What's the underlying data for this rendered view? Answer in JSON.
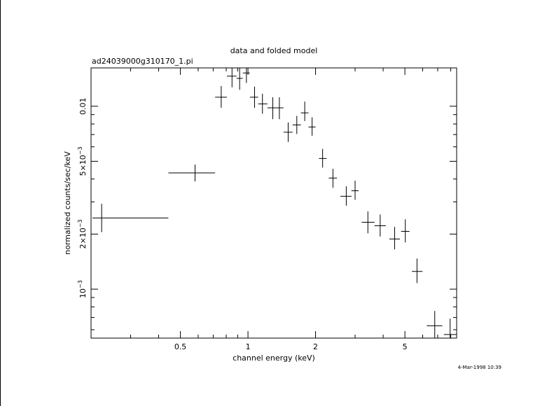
{
  "chart_data": {
    "type": "scatter",
    "title": "data and folded model",
    "subtitle": "ad24039000g310170_1.pi",
    "xlabel": "channel energy (keV)",
    "ylabel": "normalized counts/sec/keV",
    "timestamp": "4-Mar-1998 10:39",
    "xscale": "log",
    "yscale": "log",
    "xlim": [
      0.2,
      8.5
    ],
    "ylim": [
      0.00054,
      0.0162
    ],
    "x_tick_labels": [
      {
        "value": 0.5,
        "label": "0.5"
      },
      {
        "value": 1,
        "label": "1"
      },
      {
        "value": 2,
        "label": "2"
      },
      {
        "value": 5,
        "label": "5"
      }
    ],
    "y_tick_labels": [
      {
        "value": 0.001,
        "label": "10",
        "exp": "−3"
      },
      {
        "value": 0.002,
        "label": "2×10",
        "exp": "−3"
      },
      {
        "value": 0.005,
        "label": "5×10",
        "exp": "−3"
      },
      {
        "value": 0.01,
        "label": "0.01",
        "exp": ""
      }
    ],
    "series": [
      {
        "points": [
          {
            "x": 0.223,
            "xlo": 0.203,
            "xhi": 0.442,
            "y": 0.00245,
            "ylo": 0.00205,
            "yhi": 0.00293
          },
          {
            "x": 0.581,
            "xlo": 0.442,
            "xhi": 0.714,
            "y": 0.00432,
            "ylo": 0.00388,
            "yhi": 0.0048
          },
          {
            "x": 0.76,
            "xlo": 0.714,
            "xhi": 0.806,
            "y": 0.0112,
            "ylo": 0.0098,
            "yhi": 0.0129
          },
          {
            "x": 0.849,
            "xlo": 0.806,
            "xhi": 0.889,
            "y": 0.0146,
            "ylo": 0.0127,
            "yhi": 0.0168
          },
          {
            "x": 0.918,
            "xlo": 0.889,
            "xhi": 0.948,
            "y": 0.0142,
            "ylo": 0.0123,
            "yhi": 0.0164
          },
          {
            "x": 0.984,
            "xlo": 0.948,
            "xhi": 1.02,
            "y": 0.0152,
            "ylo": 0.0134,
            "yhi": 0.0172
          },
          {
            "x": 1.07,
            "xlo": 1.02,
            "xhi": 1.11,
            "y": 0.0112,
            "ylo": 0.0098,
            "yhi": 0.0128
          },
          {
            "x": 1.16,
            "xlo": 1.11,
            "xhi": 1.22,
            "y": 0.0103,
            "ylo": 0.0091,
            "yhi": 0.0117
          },
          {
            "x": 1.29,
            "xlo": 1.22,
            "xhi": 1.34,
            "y": 0.0098,
            "ylo": 0.0085,
            "yhi": 0.0112
          },
          {
            "x": 1.38,
            "xlo": 1.34,
            "xhi": 1.44,
            "y": 0.0098,
            "ylo": 0.0085,
            "yhi": 0.0112
          },
          {
            "x": 1.51,
            "xlo": 1.44,
            "xhi": 1.58,
            "y": 0.00721,
            "ylo": 0.00638,
            "yhi": 0.00815
          },
          {
            "x": 1.65,
            "xlo": 1.58,
            "xhi": 1.72,
            "y": 0.0079,
            "ylo": 0.00705,
            "yhi": 0.00885
          },
          {
            "x": 1.79,
            "xlo": 1.72,
            "xhi": 1.86,
            "y": 0.0092,
            "ylo": 0.0083,
            "yhi": 0.0106
          },
          {
            "x": 1.93,
            "xlo": 1.86,
            "xhi": 2.0,
            "y": 0.0077,
            "ylo": 0.0069,
            "yhi": 0.0087
          },
          {
            "x": 2.15,
            "xlo": 2.07,
            "xhi": 2.24,
            "y": 0.00518,
            "ylo": 0.00462,
            "yhi": 0.00585
          },
          {
            "x": 2.39,
            "xlo": 2.29,
            "xhi": 2.49,
            "y": 0.00405,
            "ylo": 0.00358,
            "yhi": 0.00455
          },
          {
            "x": 2.74,
            "xlo": 2.58,
            "xhi": 2.89,
            "y": 0.00322,
            "ylo": 0.00286,
            "yhi": 0.00365
          },
          {
            "x": 3.0,
            "xlo": 2.89,
            "xhi": 3.11,
            "y": 0.00345,
            "ylo": 0.00308,
            "yhi": 0.00392
          },
          {
            "x": 3.42,
            "xlo": 3.21,
            "xhi": 3.66,
            "y": 0.00232,
            "ylo": 0.00202,
            "yhi": 0.00266
          },
          {
            "x": 3.88,
            "xlo": 3.66,
            "xhi": 4.11,
            "y": 0.00222,
            "ylo": 0.00194,
            "yhi": 0.00256
          },
          {
            "x": 4.5,
            "xlo": 4.26,
            "xhi": 4.75,
            "y": 0.00188,
            "ylo": 0.00165,
            "yhi": 0.00219
          },
          {
            "x": 5.02,
            "xlo": 4.81,
            "xhi": 5.24,
            "y": 0.00207,
            "ylo": 0.0018,
            "yhi": 0.00241
          },
          {
            "x": 5.66,
            "xlo": 5.37,
            "xhi": 5.99,
            "y": 0.00125,
            "ylo": 0.00108,
            "yhi": 0.00147
          },
          {
            "x": 6.79,
            "xlo": 6.26,
            "xhi": 7.34,
            "y": 0.000631,
            "ylo": 0.00053,
            "yhi": 0.00076
          },
          {
            "x": 7.95,
            "xlo": 7.45,
            "xhi": 8.5,
            "y": 0.000565,
            "ylo": 0.00047,
            "yhi": 0.00069
          }
        ]
      }
    ],
    "grid": false,
    "legend": "none",
    "colors": {
      "background": "#ffffff",
      "ink": "#000000"
    }
  }
}
